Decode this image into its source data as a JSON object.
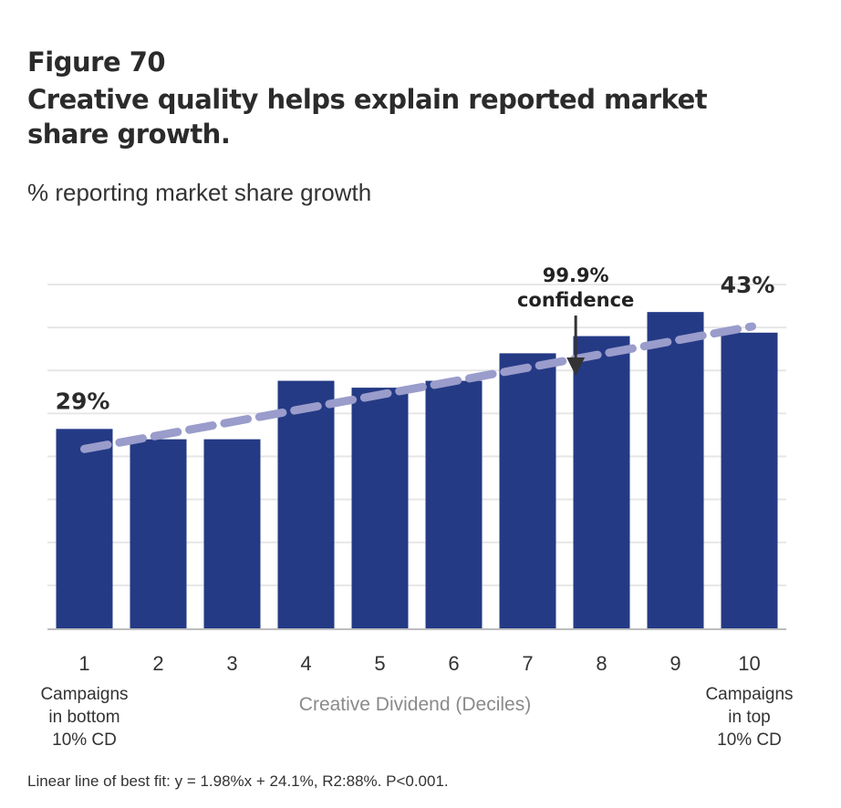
{
  "header": {
    "figure_label": "Figure 70",
    "title": "Creative quality helps explain reported market share growth.",
    "subtitle": "% reporting market share growth"
  },
  "chart_data": {
    "type": "bar",
    "xlabel": "Creative Dividend (Deciles)",
    "ylabel": "% reporting market share growth",
    "categories": [
      "1",
      "2",
      "3",
      "4",
      "5",
      "6",
      "7",
      "8",
      "9",
      "10"
    ],
    "values": [
      29,
      27.5,
      27.5,
      36,
      35,
      36,
      40,
      42.5,
      46,
      43
    ],
    "ylim": [
      0,
      50
    ],
    "grid": true,
    "value_labels": [
      {
        "index": 0,
        "text": "29%"
      },
      {
        "index": 9,
        "text": "43%"
      }
    ],
    "annotation": {
      "line1": "99.9%",
      "line2": "confidence",
      "at_x": 7.65
    },
    "trendline": {
      "slope": 1.98,
      "intercept": 24.1,
      "style": "dashed"
    },
    "category_notes": [
      {
        "index": 0,
        "lines": [
          "Campaigns",
          "in bottom",
          "10% CD"
        ]
      },
      {
        "index": 9,
        "lines": [
          "Campaigns",
          "in top",
          "10% CD"
        ]
      }
    ],
    "colors": {
      "bar": "#243a85",
      "trend": "#9a9ccb",
      "grid": "#e6e6e6",
      "axis": "#bdbdbd",
      "xlabel": "#8a8a8a"
    }
  },
  "footnote": "Linear line of best fit: y = 1.98%x + 24.1%, R2:88%. P<0.001."
}
